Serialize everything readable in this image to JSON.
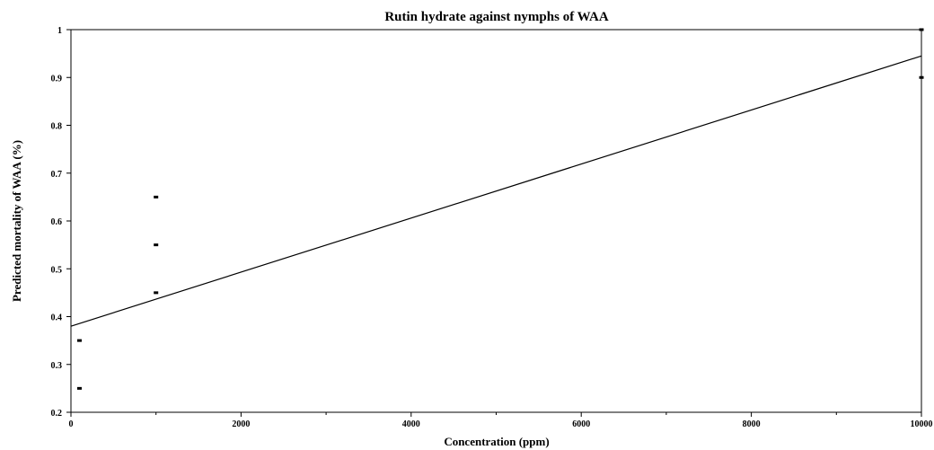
{
  "chart_data": {
    "type": "scatter",
    "title": "Rutin hydrate against nymphs of WAA",
    "xlabel": "Concentration (ppm)",
    "ylabel": "Predicted mortality of  WAA (%)",
    "xlim": [
      0,
      10000
    ],
    "ylim": [
      0.2,
      1
    ],
    "xticks": [
      0,
      2000,
      4000,
      6000,
      8000,
      10000
    ],
    "xtick_labels": [
      "0",
      "2000",
      "4000",
      "6000",
      "8000",
      "10000"
    ],
    "yticks": [
      0.2,
      0.3,
      0.4,
      0.5,
      0.6,
      0.7,
      0.8,
      0.9,
      1
    ],
    "ytick_labels": [
      "0.2",
      "0.3",
      "0.4",
      "0.5",
      "0.6",
      "0.7",
      "0.8",
      "0.9",
      "1"
    ],
    "points": [
      {
        "x": 100,
        "y": 0.25
      },
      {
        "x": 100,
        "y": 0.35
      },
      {
        "x": 1000,
        "y": 0.45
      },
      {
        "x": 1000,
        "y": 0.55
      },
      {
        "x": 1000,
        "y": 0.65
      },
      {
        "x": 10000,
        "y": 0.9
      },
      {
        "x": 10000,
        "y": 1.0
      }
    ],
    "fit_line": {
      "x": [
        0,
        10000
      ],
      "y": [
        0.38,
        0.945
      ]
    },
    "grid": false,
    "legend": "none"
  }
}
